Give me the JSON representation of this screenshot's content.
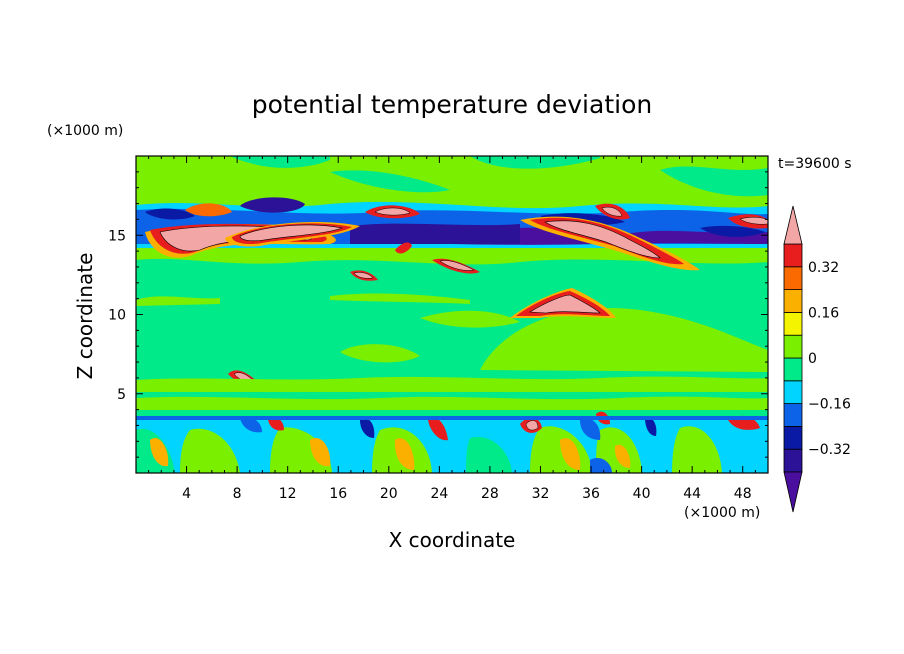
{
  "chart_data": {
    "type": "heatmap",
    "title": "potential temperature deviation",
    "xlabel": "X coordinate",
    "ylabel": "Z coordinate",
    "x_units": "(×1000 m)",
    "y_units": "(×1000 m)",
    "time_label": "t=39600 s",
    "xlim": [
      0,
      50
    ],
    "ylim": [
      0,
      20
    ],
    "x_ticks": [
      4,
      8,
      12,
      16,
      20,
      24,
      28,
      32,
      36,
      40,
      44,
      48
    ],
    "y_ticks": [
      5,
      10,
      15
    ],
    "colorbar": {
      "levels": [
        -0.4,
        -0.32,
        -0.24,
        -0.16,
        -0.08,
        0,
        0.08,
        0.16,
        0.24,
        0.32,
        0.4
      ],
      "tick_labels": [
        "0.32",
        "0.16",
        "0",
        "-0.16",
        "-0.32"
      ],
      "tick_values": [
        0.32,
        0.16,
        0,
        -0.16,
        -0.32
      ],
      "colors": [
        "#4b0fa0",
        "#2b1296",
        "#0a1aa5",
        "#0c63e8",
        "#00d4ff",
        "#00ea8a",
        "#7bef00",
        "#f4f400",
        "#fbb000",
        "#fb6a00",
        "#e81e1e",
        "#f3a6a6"
      ]
    },
    "background_level": "#00ea8a",
    "features": [
      {
        "name": "upper-band-light-green",
        "color": "#7bef00",
        "x": [
          0,
          50
        ],
        "z": [
          13.8,
          19.5
        ]
      },
      {
        "name": "upper-band-cyan",
        "color": "#00d4ff",
        "x": [
          0,
          50
        ],
        "z": [
          14.2,
          14.8
        ]
      },
      {
        "name": "lower-band-cyan",
        "color": "#00d4ff",
        "x": [
          0,
          50
        ],
        "z": [
          0,
          3.5
        ]
      }
    ]
  }
}
